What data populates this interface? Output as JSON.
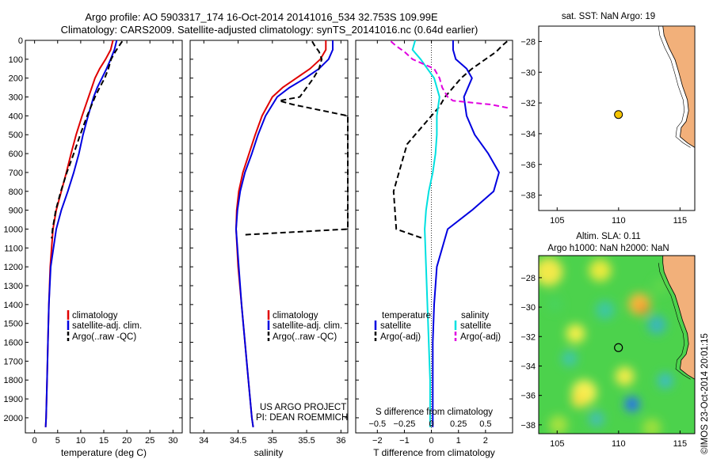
{
  "header": {
    "line1": "Argo profile: AO 5903317_174 16-Oct-2014 20141016_534 32.753S 109.99E",
    "line2": "Climatology: CARS2009. Satellite-adjusted climatology: synTS_20141016.nc (0.64d earlier)"
  },
  "colors": {
    "climatology": "#e00000",
    "satellite": "#0000e0",
    "argo": "#000000",
    "salinity_sat": "#00e0e0",
    "salinity_argo": "#e000e0",
    "land": "#f2b07a"
  },
  "chart_data": [
    {
      "type": "line",
      "id": "temperature",
      "xlabel": "temperature (deg C)",
      "xlim": [
        -2,
        32
      ],
      "ylim": [
        2080,
        0
      ],
      "xticks": [
        0,
        5,
        10,
        15,
        20,
        25,
        30
      ],
      "yticks": [
        0,
        100,
        200,
        300,
        400,
        500,
        600,
        700,
        800,
        900,
        1000,
        1100,
        1200,
        1300,
        1400,
        1500,
        1600,
        1700,
        1800,
        1900,
        2000
      ],
      "legend": [
        "climatology",
        "satellite-adj. clim.",
        "Argo(..raw -QC)"
      ],
      "series": [
        {
          "name": "climatology",
          "depth": [
            0,
            50,
            100,
            150,
            200,
            250,
            300,
            400,
            500,
            600,
            700,
            800,
            900,
            1000,
            1200,
            1400,
            1600,
            1800,
            2000,
            2050
          ],
          "values": [
            17.0,
            16.5,
            15.4,
            14.1,
            13.1,
            12.4,
            11.7,
            10.3,
            9.0,
            7.9,
            6.9,
            5.8,
            4.7,
            4.0,
            3.4,
            3.1,
            2.9,
            2.7,
            2.5,
            2.4
          ]
        },
        {
          "name": "satellite-adj. clim.",
          "depth": [
            0,
            50,
            100,
            150,
            200,
            250,
            300,
            400,
            500,
            600,
            700,
            800,
            900,
            1000,
            1200,
            1400,
            1600,
            1800,
            2000,
            2050
          ],
          "values": [
            17.8,
            17.3,
            16.5,
            15.6,
            14.6,
            13.6,
            12.8,
            11.6,
            10.5,
            9.6,
            8.5,
            7.2,
            5.8,
            4.7,
            3.5,
            3.1,
            2.9,
            2.7,
            2.5,
            2.4
          ]
        },
        {
          "name": "Argo(..raw -QC)",
          "depth": [
            5,
            30,
            60,
            100,
            150,
            200,
            250,
            300,
            400,
            500,
            600,
            700,
            800,
            900,
            1000,
            1050
          ],
          "values": [
            19.0,
            18.3,
            17.5,
            16.6,
            16.0,
            15.2,
            14.1,
            13.1,
            11.4,
            9.9,
            8.5,
            7.0,
            5.7,
            4.6,
            3.9,
            3.7
          ]
        }
      ]
    },
    {
      "type": "line",
      "id": "salinity",
      "xlabel": "salinity",
      "xlim": [
        33.8,
        36.1
      ],
      "ylim": [
        2080,
        0
      ],
      "xticks": [
        34,
        34.5,
        35,
        35.5,
        36
      ],
      "xticklabels": [
        "34",
        "34.5",
        "35",
        "35.5",
        "36"
      ],
      "legend": [
        "climatology",
        "satellite-adj. clim.",
        "Argo(..raw -QC)"
      ],
      "annotation": [
        "US ARGO PROJECT",
        "PI: DEAN ROEMMICH"
      ],
      "series": [
        {
          "name": "climatology",
          "depth": [
            0,
            50,
            100,
            150,
            200,
            250,
            300,
            400,
            500,
            600,
            700,
            800,
            900,
            1000,
            1200,
            1400,
            1600,
            1800,
            2000,
            2050
          ],
          "values": [
            35.78,
            35.78,
            35.7,
            35.55,
            35.35,
            35.15,
            35.0,
            34.85,
            34.75,
            34.66,
            34.57,
            34.51,
            34.48,
            34.47,
            34.5,
            34.55,
            34.6,
            34.65,
            34.7,
            34.72
          ]
        },
        {
          "name": "satellite-adj. clim.",
          "depth": [
            0,
            50,
            100,
            150,
            200,
            250,
            300,
            400,
            500,
            600,
            700,
            800,
            900,
            1000,
            1200,
            1400,
            1600,
            1800,
            2000,
            2050
          ],
          "values": [
            35.88,
            35.88,
            35.82,
            35.68,
            35.48,
            35.25,
            35.07,
            34.9,
            34.79,
            34.7,
            34.6,
            34.53,
            34.49,
            34.47,
            34.51,
            34.55,
            34.6,
            34.65,
            34.7,
            34.72
          ]
        },
        {
          "name": "Argo(..raw -QC)",
          "depth": [
            5,
            30,
            60,
            100,
            150,
            200,
            250,
            300,
            320,
            340,
            400,
            500,
            700,
            800,
            900,
            1000,
            1030
          ],
          "values": [
            35.58,
            35.62,
            35.68,
            35.72,
            35.68,
            35.6,
            35.5,
            35.4,
            35.1,
            35.3,
            36.1,
            36.1,
            36.1,
            36.1,
            36.1,
            36.1,
            34.6
          ]
        }
      ]
    },
    {
      "type": "line",
      "id": "difference",
      "xlabel": "T difference from climatology",
      "title": "S difference from climatology",
      "xlim": [
        -2.8,
        3.0
      ],
      "ylim": [
        2080,
        0
      ],
      "xticks": [
        -2,
        -1,
        0,
        1,
        2
      ],
      "top_ticks": [
        -0.5,
        -0.25,
        0,
        0.25,
        0.5
      ],
      "top_ticklabels": [
        "−0.5",
        "−0.25",
        "0",
        "0.25",
        "0.5"
      ],
      "bottom_ticklabels": [
        "−2",
        "−1",
        "0",
        "1",
        "2"
      ],
      "legend_headers": [
        "temperature",
        "salinity"
      ],
      "legend": [
        "satellite",
        "Argo(-adj)",
        "satellite",
        "Argo(-adj)"
      ],
      "series": [
        {
          "name": "satellite",
          "depth": [
            0,
            50,
            100,
            150,
            200,
            300,
            400,
            500,
            600,
            700,
            800,
            900,
            1000,
            1200,
            1400,
            1600,
            1800,
            2000,
            2050
          ],
          "values": [
            0.8,
            0.8,
            0.9,
            1.3,
            1.5,
            1.2,
            1.3,
            1.6,
            2.1,
            2.5,
            2.3,
            1.5,
            0.6,
            0.2,
            0.1,
            0.05,
            0.05,
            0.05,
            0.05
          ]
        },
        {
          "name": "Argo(-adj)",
          "depth": [
            5,
            30,
            60,
            100,
            150,
            200,
            250,
            300,
            350,
            400,
            500,
            550,
            600,
            650,
            700,
            750,
            800,
            1000,
            1050
          ],
          "values": [
            2.8,
            2.6,
            2.4,
            2.0,
            1.5,
            1.1,
            0.8,
            0.5,
            0.3,
            0.0,
            -0.6,
            -0.9,
            -1.0,
            -1.1,
            -1.2,
            -1.3,
            -1.4,
            -1.3,
            -0.3
          ]
        },
        {
          "name": "satellite",
          "depth": [
            0,
            50,
            100,
            200,
            300,
            400,
            500,
            600,
            700,
            800,
            900,
            1000,
            1200,
            1400,
            1600,
            1800,
            2000,
            2050
          ],
          "values": [
            -0.6,
            -0.7,
            -0.4,
            0.1,
            0.3,
            0.2,
            0.2,
            0.15,
            0.05,
            -0.1,
            -0.2,
            -0.25,
            -0.2,
            -0.15,
            -0.1,
            -0.05,
            -0.05,
            -0.05
          ]
        },
        {
          "name": "Argo(-adj)",
          "depth": [
            5,
            30,
            60,
            100,
            150,
            200,
            250,
            300,
            320,
            340,
            360
          ],
          "values": [
            -1.5,
            -1.3,
            -1.0,
            -0.7,
            0.1,
            0.3,
            0.4,
            0.6,
            0.8,
            2.2,
            2.9
          ]
        }
      ]
    },
    {
      "type": "scatter",
      "id": "sst_map",
      "title": "sat. SST: NaN Argo: 19",
      "xlim": [
        103.5,
        116.2
      ],
      "ylim": [
        -39,
        -27
      ],
      "xticks": [
        105,
        110,
        115
      ],
      "yticks": [
        -28,
        -30,
        -32,
        -34,
        -36,
        -38
      ],
      "points": [
        {
          "x": 109.99,
          "y": -32.753
        }
      ]
    },
    {
      "type": "heatmap",
      "id": "sla_map",
      "title_lines": [
        "Altim. SLA: 0.11",
        "Argo h1000: NaN h2000: NaN"
      ],
      "xlim": [
        103.5,
        116.2
      ],
      "ylim": [
        -38.6,
        -26.5
      ],
      "xticks": [
        105,
        110,
        115
      ],
      "yticks": [
        -28,
        -30,
        -32,
        -34,
        -36,
        -38
      ],
      "points": [
        {
          "x": 109.99,
          "y": -32.753
        }
      ]
    }
  ],
  "side_caption": "©IMOS 23-Oct-2014 20:01:15"
}
